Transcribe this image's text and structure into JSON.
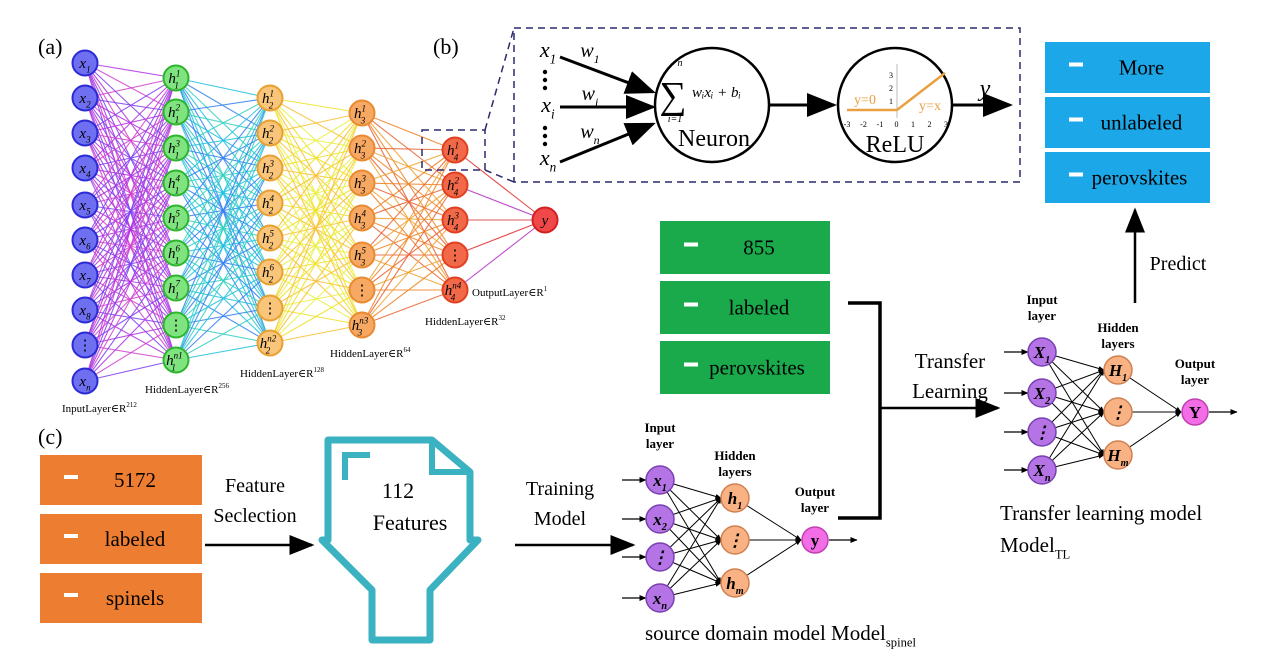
{
  "panel_labels": {
    "a": "(a)",
    "b": "(b)",
    "c": "(c)"
  },
  "colors": {
    "input_blue": "#6f6ff2",
    "hidden1_green": "#7fe37f",
    "hidden2_orange": "#f9c57a",
    "hidden3_orange": "#f7a964",
    "hidden4_red": "#f2694a",
    "output_red": "#f04848",
    "box_blue": "#1ca8e8",
    "box_green": "#1aaa4c",
    "box_orange": "#ed7d31",
    "funnel_teal": "#3bb2c2",
    "small_input": "#b574e6",
    "small_hidden": "#f8b283",
    "small_output": "#f36de6"
  },
  "network_a": {
    "layers": [
      {
        "nodes": [
          [
            "x",
            "1",
            ""
          ],
          [
            "x",
            "2",
            ""
          ],
          [
            "x",
            "3",
            ""
          ],
          [
            "x",
            "4",
            ""
          ],
          [
            "x",
            "5",
            ""
          ],
          [
            "x",
            "6",
            ""
          ],
          [
            "x",
            "7",
            ""
          ],
          [
            "x",
            "8",
            ""
          ],
          [
            "⋮",
            "",
            ""
          ],
          [
            "x",
            "n",
            ""
          ]
        ],
        "caption": "InputLayer∈R",
        "caption_sup": "212"
      },
      {
        "nodes": [
          [
            "h",
            "1",
            "1"
          ],
          [
            "h",
            "1",
            "2"
          ],
          [
            "h",
            "1",
            "3"
          ],
          [
            "h",
            "1",
            "4"
          ],
          [
            "h",
            "1",
            "5"
          ],
          [
            "h",
            "1",
            "6"
          ],
          [
            "h",
            "1",
            "7"
          ],
          [
            "⋮",
            "",
            ""
          ],
          [
            "h",
            "1",
            "n1"
          ]
        ],
        "caption": "HiddenLayer∈R",
        "caption_sup": "256"
      },
      {
        "nodes": [
          [
            "h",
            "2",
            "1"
          ],
          [
            "h",
            "2",
            "2"
          ],
          [
            "h",
            "2",
            "3"
          ],
          [
            "h",
            "2",
            "4"
          ],
          [
            "h",
            "2",
            "5"
          ],
          [
            "h",
            "2",
            "6"
          ],
          [
            "⋮",
            "",
            ""
          ],
          [
            "h",
            "2",
            "n2"
          ]
        ],
        "caption": "HiddenLayer∈R",
        "caption_sup": "128"
      },
      {
        "nodes": [
          [
            "h",
            "3",
            "1"
          ],
          [
            "h",
            "3",
            "2"
          ],
          [
            "h",
            "3",
            "3"
          ],
          [
            "h",
            "3",
            "4"
          ],
          [
            "h",
            "3",
            "5"
          ],
          [
            "⋮",
            "",
            ""
          ],
          [
            "h",
            "3",
            "n3"
          ]
        ],
        "caption": "HiddenLayer∈R",
        "caption_sup": "64"
      },
      {
        "nodes": [
          [
            "h",
            "4",
            "1"
          ],
          [
            "h",
            "4",
            "2"
          ],
          [
            "h",
            "4",
            "3"
          ],
          [
            "⋮",
            "",
            ""
          ],
          [
            "h",
            "4",
            "n4"
          ]
        ],
        "caption": "HiddenLayer∈R",
        "caption_sup": "32"
      },
      {
        "nodes": [
          [
            "y",
            "",
            ""
          ]
        ],
        "caption": "OutputLayer∈R",
        "caption_sup": "1"
      }
    ]
  },
  "neuron_b": {
    "inputs": [
      [
        "x",
        "1"
      ],
      [
        "x",
        "i"
      ],
      [
        "x",
        "n"
      ]
    ],
    "weights": [
      [
        "w",
        "1"
      ],
      [
        "w",
        "i"
      ],
      [
        "w",
        "n"
      ]
    ],
    "sum_top": "n",
    "sum_bottom": "i=1",
    "sum_symbol": "∑",
    "sum_expr": "wᵢxᵢ + bᵢ",
    "neuron_label": "Neuron",
    "relu_label": "ReLU",
    "relu_left": "y=0",
    "relu_right": "y=x",
    "relu_xticks": [
      "-3",
      "-2",
      "-1",
      "0",
      "1",
      "2",
      "3"
    ],
    "relu_yticks": [
      "1",
      "2",
      "3"
    ],
    "output": "y"
  },
  "predict_boxes": [
    "More",
    "unlabeled",
    "perovskites"
  ],
  "target_boxes": [
    "855",
    "labeled",
    "perovskites"
  ],
  "source_boxes": [
    "5172",
    "labeled",
    "spinels"
  ],
  "flow": {
    "feature_selection": [
      "Feature",
      "Seclection"
    ],
    "funnel": [
      "112",
      "Features"
    ],
    "training": [
      "Training",
      "Model"
    ],
    "transfer": [
      "Transfer",
      "Learning"
    ],
    "predict": "Predict"
  },
  "source_model": {
    "input_label": [
      "Input",
      "layer"
    ],
    "hidden_label": [
      "Hidden",
      "layers"
    ],
    "output_label": [
      "Output",
      "layer"
    ],
    "inputs": [
      [
        "x",
        "1"
      ],
      [
        "x",
        "2"
      ],
      [
        "⋮",
        ""
      ],
      [
        "x",
        "n"
      ]
    ],
    "hidden": [
      [
        "h",
        "1"
      ],
      [
        "⋮",
        ""
      ],
      [
        "h",
        "m"
      ]
    ],
    "output": "y",
    "caption": "source domain model Model",
    "caption_sub": "spinel"
  },
  "tl_model": {
    "input_label": [
      "Input",
      "layer"
    ],
    "hidden_label": [
      "Hidden",
      "layers"
    ],
    "output_label": [
      "Output",
      "layer"
    ],
    "inputs": [
      [
        "X",
        "1"
      ],
      [
        "X",
        "2"
      ],
      [
        "⋮",
        ""
      ],
      [
        "X",
        "n"
      ]
    ],
    "hidden": [
      [
        "H",
        "1"
      ],
      [
        "⋮",
        ""
      ],
      [
        "H",
        "m"
      ]
    ],
    "output": "Y",
    "caption": "Transfer learning model",
    "caption2": "Model",
    "caption2_sub": "TL"
  }
}
